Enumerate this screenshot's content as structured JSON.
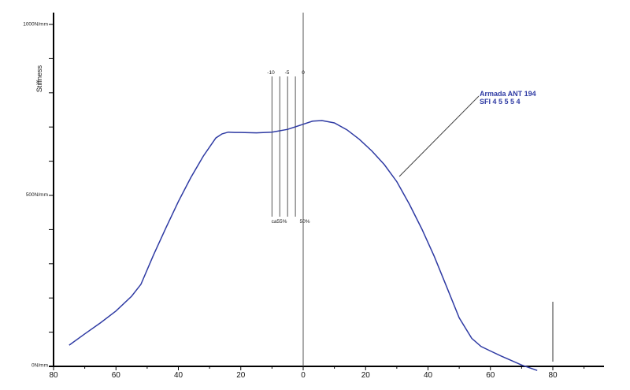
{
  "chart_data": {
    "type": "line",
    "title": "",
    "ylabel": "Stiffness",
    "y_tick_labels": [
      "0N/mm",
      "500N/mm",
      "1000N/mm"
    ],
    "x_ticks": [
      80,
      60,
      40,
      20,
      0,
      20,
      40,
      60,
      80
    ],
    "x_positions": [
      -80,
      -60,
      -40,
      -20,
      0,
      20,
      40,
      60,
      80
    ],
    "xlim": [
      -80,
      96
    ],
    "ylim": [
      0,
      1000
    ],
    "series": [
      {
        "name": "Armada ANT 194",
        "sublabel": "SFI 4 5 5 5 4",
        "color": "#2e3aa3",
        "x": [
          -75,
          -70,
          -65,
          -60,
          -55,
          -52,
          -48,
          -44,
          -40,
          -36,
          -32,
          -28,
          -26,
          -24,
          -22,
          -20,
          -15,
          -10,
          -5,
          0,
          3,
          6,
          10,
          14,
          18,
          22,
          26,
          30,
          34,
          38,
          42,
          46,
          50,
          54,
          57,
          60,
          63,
          66,
          70,
          75
        ],
        "y": [
          62,
          95,
          127,
          162,
          205,
          240,
          325,
          405,
          482,
          552,
          615,
          668,
          680,
          685,
          684,
          684,
          683,
          685,
          693,
          708,
          717,
          719,
          712,
          692,
          664,
          630,
          590,
          540,
          475,
          402,
          322,
          232,
          142,
          82,
          58,
          45,
          32,
          20,
          4,
          -12
        ]
      }
    ],
    "reference_lines": {
      "top_labels": [
        "-10",
        "-5",
        "0"
      ],
      "top_positions": [
        -10,
        -5,
        0
      ],
      "extra_positions": [
        -7.5,
        -2.5
      ],
      "bottom_labels": [
        "ca55%",
        "50%"
      ],
      "bottom_positions": [
        -7.5,
        0
      ]
    },
    "legend_placement": "top-right, with leader line to curve",
    "grid": false
  }
}
